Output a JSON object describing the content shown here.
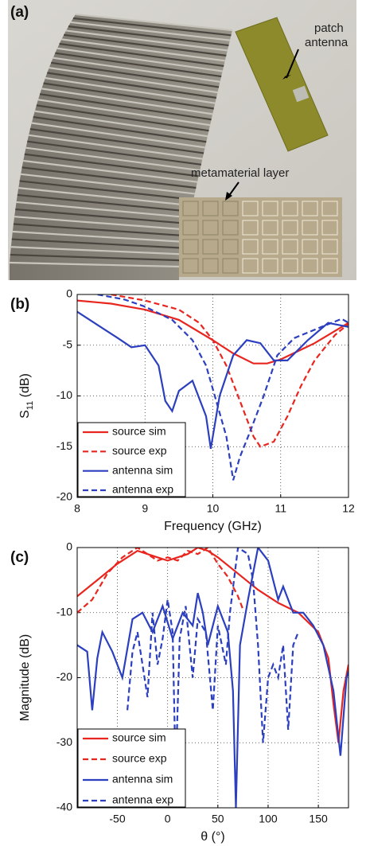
{
  "photo": {
    "panel_label": "(a)",
    "annotations": [
      "patch",
      "antenna",
      "metamaterial layer"
    ]
  },
  "chart_data": [
    {
      "type": "line",
      "panel_label": "(b)",
      "xlabel": "Frequency (GHz)",
      "ylabel": "S",
      "ylabel_sub": "11",
      "ylabel_unit": " (dB)",
      "xlim": [
        8,
        12
      ],
      "ylim": [
        -20,
        0
      ],
      "xticks": [
        8,
        9,
        10,
        11,
        12
      ],
      "yticks": [
        0,
        -5,
        -10,
        -15,
        -20
      ],
      "grid": true,
      "legend": "lower left",
      "series": [
        {
          "name": "source sim",
          "color": "#e8261f",
          "dash": false,
          "x": [
            8,
            8.5,
            9,
            9.5,
            10,
            10.3,
            10.6,
            10.8,
            11,
            11.5,
            12
          ],
          "values": [
            -0.6,
            -0.9,
            -1.5,
            -2.5,
            -4.5,
            -5.8,
            -6.8,
            -6.8,
            -6.4,
            -4.8,
            -2.8
          ]
        },
        {
          "name": "source exp",
          "color": "#e8261f",
          "dash": true,
          "x": [
            8.5,
            9,
            9.5,
            9.8,
            10,
            10.2,
            10.4,
            10.6,
            10.7,
            10.9,
            11.1,
            11.3,
            11.5,
            11.8,
            12
          ],
          "values": [
            0,
            -0.6,
            -1.5,
            -2.8,
            -4.5,
            -7,
            -10.5,
            -14,
            -15,
            -14.5,
            -12,
            -9,
            -6.5,
            -4,
            -2.9
          ]
        },
        {
          "name": "antenna sim",
          "color": "#2b3fbf",
          "dash": false,
          "x": [
            8,
            8.3,
            8.6,
            8.8,
            9,
            9.2,
            9.3,
            9.4,
            9.5,
            9.7,
            9.9,
            9.97,
            10.1,
            10.3,
            10.5,
            10.7,
            10.9,
            11.1,
            11.4,
            11.7,
            12
          ],
          "values": [
            -1.7,
            -3,
            -4.3,
            -5.2,
            -5,
            -7,
            -10.5,
            -11.5,
            -9.5,
            -8.5,
            -12,
            -15.2,
            -10,
            -6,
            -4.5,
            -4.8,
            -6.5,
            -6.5,
            -4.5,
            -2.8,
            -3.2
          ]
        },
        {
          "name": "antenna exp",
          "color": "#2b3fbf",
          "dash": true,
          "x": [
            8.3,
            8.7,
            9,
            9.4,
            9.7,
            9.9,
            10.05,
            10.2,
            10.3,
            10.4,
            10.55,
            10.75,
            10.95,
            11.2,
            11.6,
            11.9,
            12
          ],
          "values": [
            0,
            -0.5,
            -1.2,
            -2.5,
            -4.5,
            -7,
            -10.5,
            -14,
            -18.3,
            -16,
            -13.5,
            -10,
            -6,
            -4.3,
            -3.2,
            -2.4,
            -2.8
          ]
        }
      ]
    },
    {
      "type": "line",
      "panel_label": "(c)",
      "xlabel": "θ (°)",
      "ylabel": "Magnitude (dB)",
      "xlim": [
        -90,
        180
      ],
      "ylim": [
        -40,
        0
      ],
      "xticks": [
        -50,
        0,
        50,
        100,
        150
      ],
      "yticks": [
        0,
        -10,
        -20,
        -30,
        -40
      ],
      "grid": true,
      "legend": "lower left",
      "series": [
        {
          "name": "source sim",
          "color": "#e8261f",
          "dash": false,
          "x": [
            -90,
            -70,
            -50,
            -30,
            -10,
            0,
            20,
            30,
            40,
            50,
            70,
            90,
            110,
            130,
            150,
            160,
            165,
            170,
            175,
            180
          ],
          "values": [
            -7.5,
            -5,
            -2.5,
            -0.5,
            -1.5,
            -2,
            -1,
            0,
            -0.5,
            -1.5,
            -4,
            -6.5,
            -8.5,
            -10,
            -13,
            -17,
            -24,
            -30,
            -22,
            -18
          ]
        },
        {
          "name": "source exp",
          "color": "#e8261f",
          "dash": true,
          "x": [
            -90,
            -75,
            -60,
            -45,
            -30,
            -20,
            -10,
            0,
            10,
            20,
            30,
            40,
            50,
            60,
            70,
            75
          ],
          "values": [
            -10,
            -8,
            -4,
            -1.5,
            0,
            -1,
            -2,
            -1.5,
            -2,
            -0.5,
            -1,
            0,
            -2.5,
            -4.5,
            -7.5,
            -9.5
          ]
        },
        {
          "name": "antenna sim",
          "color": "#2b3fbf",
          "dash": false,
          "x": [
            -90,
            -80,
            -75,
            -70,
            -65,
            -55,
            -45,
            -35,
            -25,
            -15,
            -5,
            5,
            15,
            25,
            30,
            35,
            40,
            50,
            60,
            65,
            68,
            72,
            80,
            90,
            100,
            110,
            115,
            125,
            135,
            145,
            155,
            165,
            172,
            178,
            180
          ],
          "values": [
            -15,
            -16,
            -25,
            -17,
            -13,
            -16,
            -20,
            -11,
            -10,
            -13,
            -9,
            -14,
            -10,
            -12,
            -7,
            -10,
            -15,
            -9,
            -13,
            -22,
            -40,
            -15,
            -8,
            0,
            -2,
            -8,
            -6,
            -10,
            -10,
            -12,
            -15,
            -22,
            -32,
            -20,
            -19
          ]
        },
        {
          "name": "antenna exp",
          "color": "#2b3fbf",
          "dash": true,
          "x": [
            -40,
            -35,
            -30,
            -25,
            -20,
            -15,
            -10,
            -5,
            0,
            5,
            8,
            12,
            18,
            25,
            30,
            38,
            45,
            50,
            58,
            62,
            70,
            80,
            85,
            90,
            95,
            100,
            105,
            110,
            115,
            120,
            125,
            130
          ],
          "values": [
            -25,
            -16,
            -13,
            -18,
            -23,
            -10,
            -18,
            -14,
            -8,
            -13,
            -35,
            -14,
            -9,
            -20,
            -11,
            -13,
            -25,
            -12,
            -18,
            -10,
            0,
            -1,
            -5,
            -15,
            -30,
            -20,
            -18,
            -20,
            -15,
            -28,
            -15,
            -13
          ]
        }
      ]
    }
  ]
}
